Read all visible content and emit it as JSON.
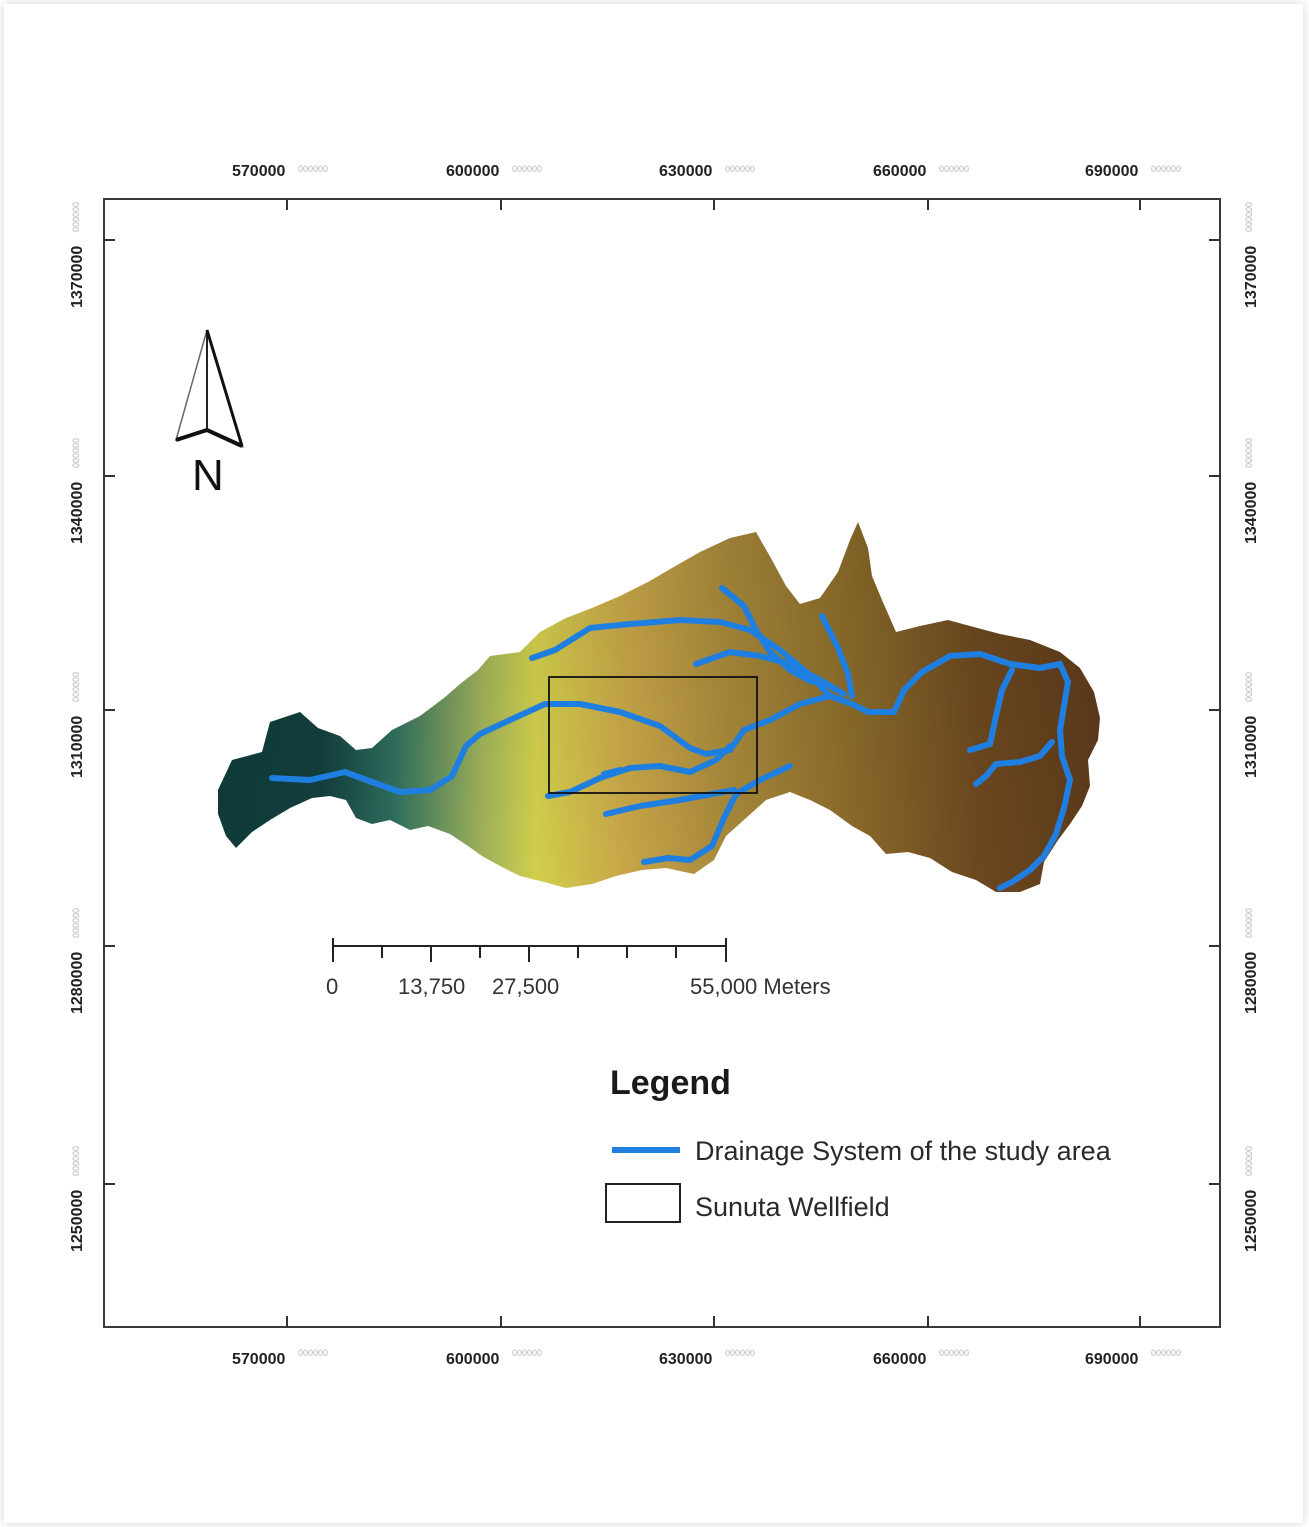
{
  "map": {
    "x_ticks": [
      {
        "value": "570000",
        "suffix": "000000"
      },
      {
        "value": "600000",
        "suffix": "000000"
      },
      {
        "value": "630000",
        "suffix": "000000"
      },
      {
        "value": "660000",
        "suffix": "000000"
      },
      {
        "value": "690000",
        "suffix": "000000"
      }
    ],
    "y_ticks": [
      {
        "value": "1370000",
        "suffix": "000000"
      },
      {
        "value": "1340000",
        "suffix": "000000"
      },
      {
        "value": "1310000",
        "suffix": "000000"
      },
      {
        "value": "1280000",
        "suffix": "000000"
      },
      {
        "value": "1250000",
        "suffix": "000000"
      }
    ],
    "north_arrow": {
      "label": "N",
      "icon": "north-arrow-icon"
    },
    "scale_bar": {
      "labels": [
        "0",
        "13,750",
        "27,500",
        "55,000 Meters"
      ]
    },
    "legend": {
      "title": "Legend",
      "items": [
        {
          "label": "Drainage System of the study area",
          "symbol": "blue-line",
          "color": "#1f7fe0"
        },
        {
          "label": "Sunuta Wellfield",
          "symbol": "black-rectangle",
          "color": "#000000"
        }
      ]
    },
    "colors": {
      "river": "#1f7fe0",
      "elevation_low": "#0e3a3a",
      "elevation_mid": "#c6c448",
      "elevation_high": "#5a3a1c"
    }
  }
}
